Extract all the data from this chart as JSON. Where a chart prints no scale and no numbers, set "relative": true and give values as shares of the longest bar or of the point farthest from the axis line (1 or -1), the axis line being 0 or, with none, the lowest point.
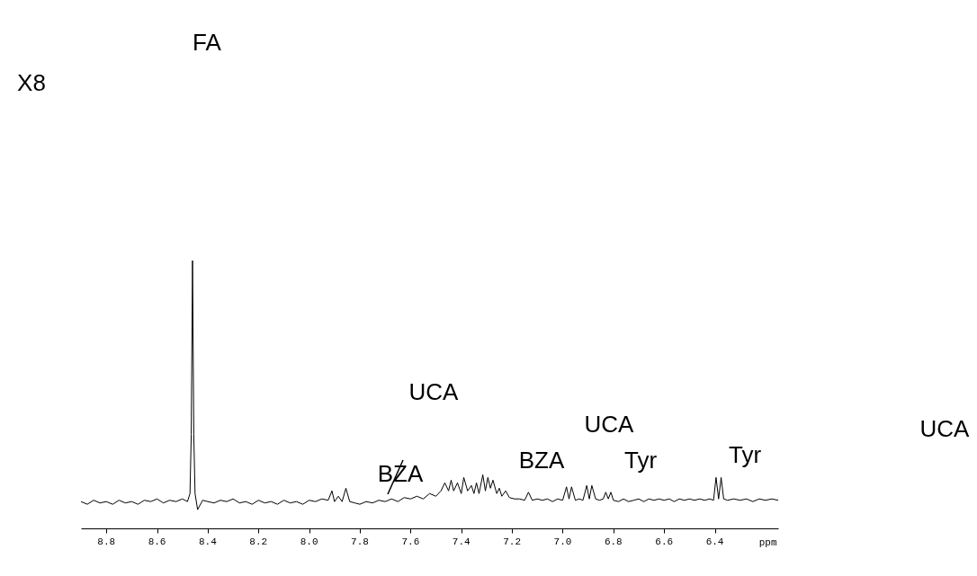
{
  "chart_data": {
    "type": "line",
    "relative": true,
    "xlabel": "ppm",
    "color": "#000000",
    "xlim": [
      8.9,
      6.15
    ],
    "xticks": [
      8.8,
      8.6,
      8.4,
      8.2,
      {
        "value": 8,
        "label": "8.0"
      },
      7.8,
      7.6,
      7.4,
      7.2,
      {
        "value": 7,
        "label": "7.0"
      },
      6.8,
      6.6,
      6.4
    ],
    "x": [
      8.9,
      8.875,
      8.85,
      8.825,
      8.8,
      8.775,
      8.75,
      8.725,
      8.7,
      8.675,
      8.65,
      8.625,
      8.6,
      8.575,
      8.55,
      8.525,
      8.5,
      8.48,
      8.47,
      8.465,
      8.46,
      8.455,
      8.45,
      8.44,
      8.42,
      8.4,
      8.375,
      8.35,
      8.325,
      8.3,
      8.275,
      8.25,
      8.225,
      8.2,
      8.175,
      8.15,
      8.125,
      8.1,
      8.075,
      8.05,
      8.025,
      8.0,
      7.975,
      7.95,
      7.925,
      7.91,
      7.9,
      7.885,
      7.87,
      7.855,
      7.84,
      7.82,
      7.8,
      7.775,
      7.75,
      7.725,
      7.7,
      7.675,
      7.65,
      7.625,
      7.6,
      7.575,
      7.55,
      7.525,
      7.5,
      7.48,
      7.465,
      7.45,
      7.44,
      7.43,
      7.415,
      7.4,
      7.39,
      7.375,
      7.36,
      7.35,
      7.34,
      7.33,
      7.315,
      7.305,
      7.295,
      7.285,
      7.275,
      7.26,
      7.25,
      7.24,
      7.225,
      7.21,
      7.19,
      7.17,
      7.15,
      7.135,
      7.12,
      7.1,
      7.08,
      7.06,
      7.04,
      7.02,
      7.0,
      6.985,
      6.975,
      6.965,
      6.95,
      6.935,
      6.92,
      6.905,
      6.895,
      6.885,
      6.87,
      6.855,
      6.84,
      6.83,
      6.82,
      6.81,
      6.8,
      6.78,
      6.76,
      6.74,
      6.72,
      6.7,
      6.68,
      6.66,
      6.64,
      6.62,
      6.6,
      6.58,
      6.56,
      6.54,
      6.52,
      6.5,
      6.48,
      6.46,
      6.44,
      6.42,
      6.405,
      6.395,
      6.385,
      6.375,
      6.365,
      6.35,
      6.325,
      6.3,
      6.275,
      6.25,
      6.225,
      6.2,
      6.175,
      6.15
    ],
    "values": [
      0.1,
      0.09,
      0.105,
      0.095,
      0.1,
      0.09,
      0.105,
      0.095,
      0.1,
      0.09,
      0.105,
      0.1,
      0.11,
      0.095,
      0.105,
      0.1,
      0.11,
      0.1,
      0.13,
      0.35,
      1,
      0.35,
      0.13,
      0.07,
      0.105,
      0.1,
      0.095,
      0.105,
      0.1,
      0.11,
      0.095,
      0.1,
      0.09,
      0.105,
      0.095,
      0.1,
      0.09,
      0.105,
      0.095,
      0.1,
      0.09,
      0.105,
      0.1,
      0.11,
      0.105,
      0.14,
      0.1,
      0.12,
      0.1,
      0.15,
      0.1,
      0.095,
      0.09,
      0.1,
      0.095,
      0.105,
      0.1,
      0.11,
      0.1,
      0.115,
      0.11,
      0.12,
      0.11,
      0.13,
      0.12,
      0.14,
      0.17,
      0.14,
      0.18,
      0.14,
      0.17,
      0.13,
      0.19,
      0.14,
      0.16,
      0.13,
      0.17,
      0.13,
      0.2,
      0.14,
      0.19,
      0.15,
      0.18,
      0.13,
      0.15,
      0.12,
      0.14,
      0.115,
      0.11,
      0.11,
      0.105,
      0.135,
      0.105,
      0.11,
      0.105,
      0.11,
      0.1,
      0.11,
      0.105,
      0.155,
      0.11,
      0.155,
      0.105,
      0.11,
      0.105,
      0.16,
      0.11,
      0.16,
      0.11,
      0.105,
      0.11,
      0.135,
      0.11,
      0.135,
      0.105,
      0.1,
      0.11,
      0.1,
      0.105,
      0.11,
      0.1,
      0.11,
      0.105,
      0.11,
      0.105,
      0.11,
      0.1,
      0.11,
      0.105,
      0.11,
      0.105,
      0.11,
      0.105,
      0.11,
      0.105,
      0.19,
      0.11,
      0.19,
      0.11,
      0.105,
      0.11,
      0.105,
      0.11,
      0.1,
      0.11,
      0.105,
      0.11,
      0.105
    ],
    "annotations": [
      "X8",
      "UCA",
      "FA",
      "UCA",
      "BZA",
      "BZA",
      "UCA",
      "Tyr",
      "Tyr"
    ]
  }
}
